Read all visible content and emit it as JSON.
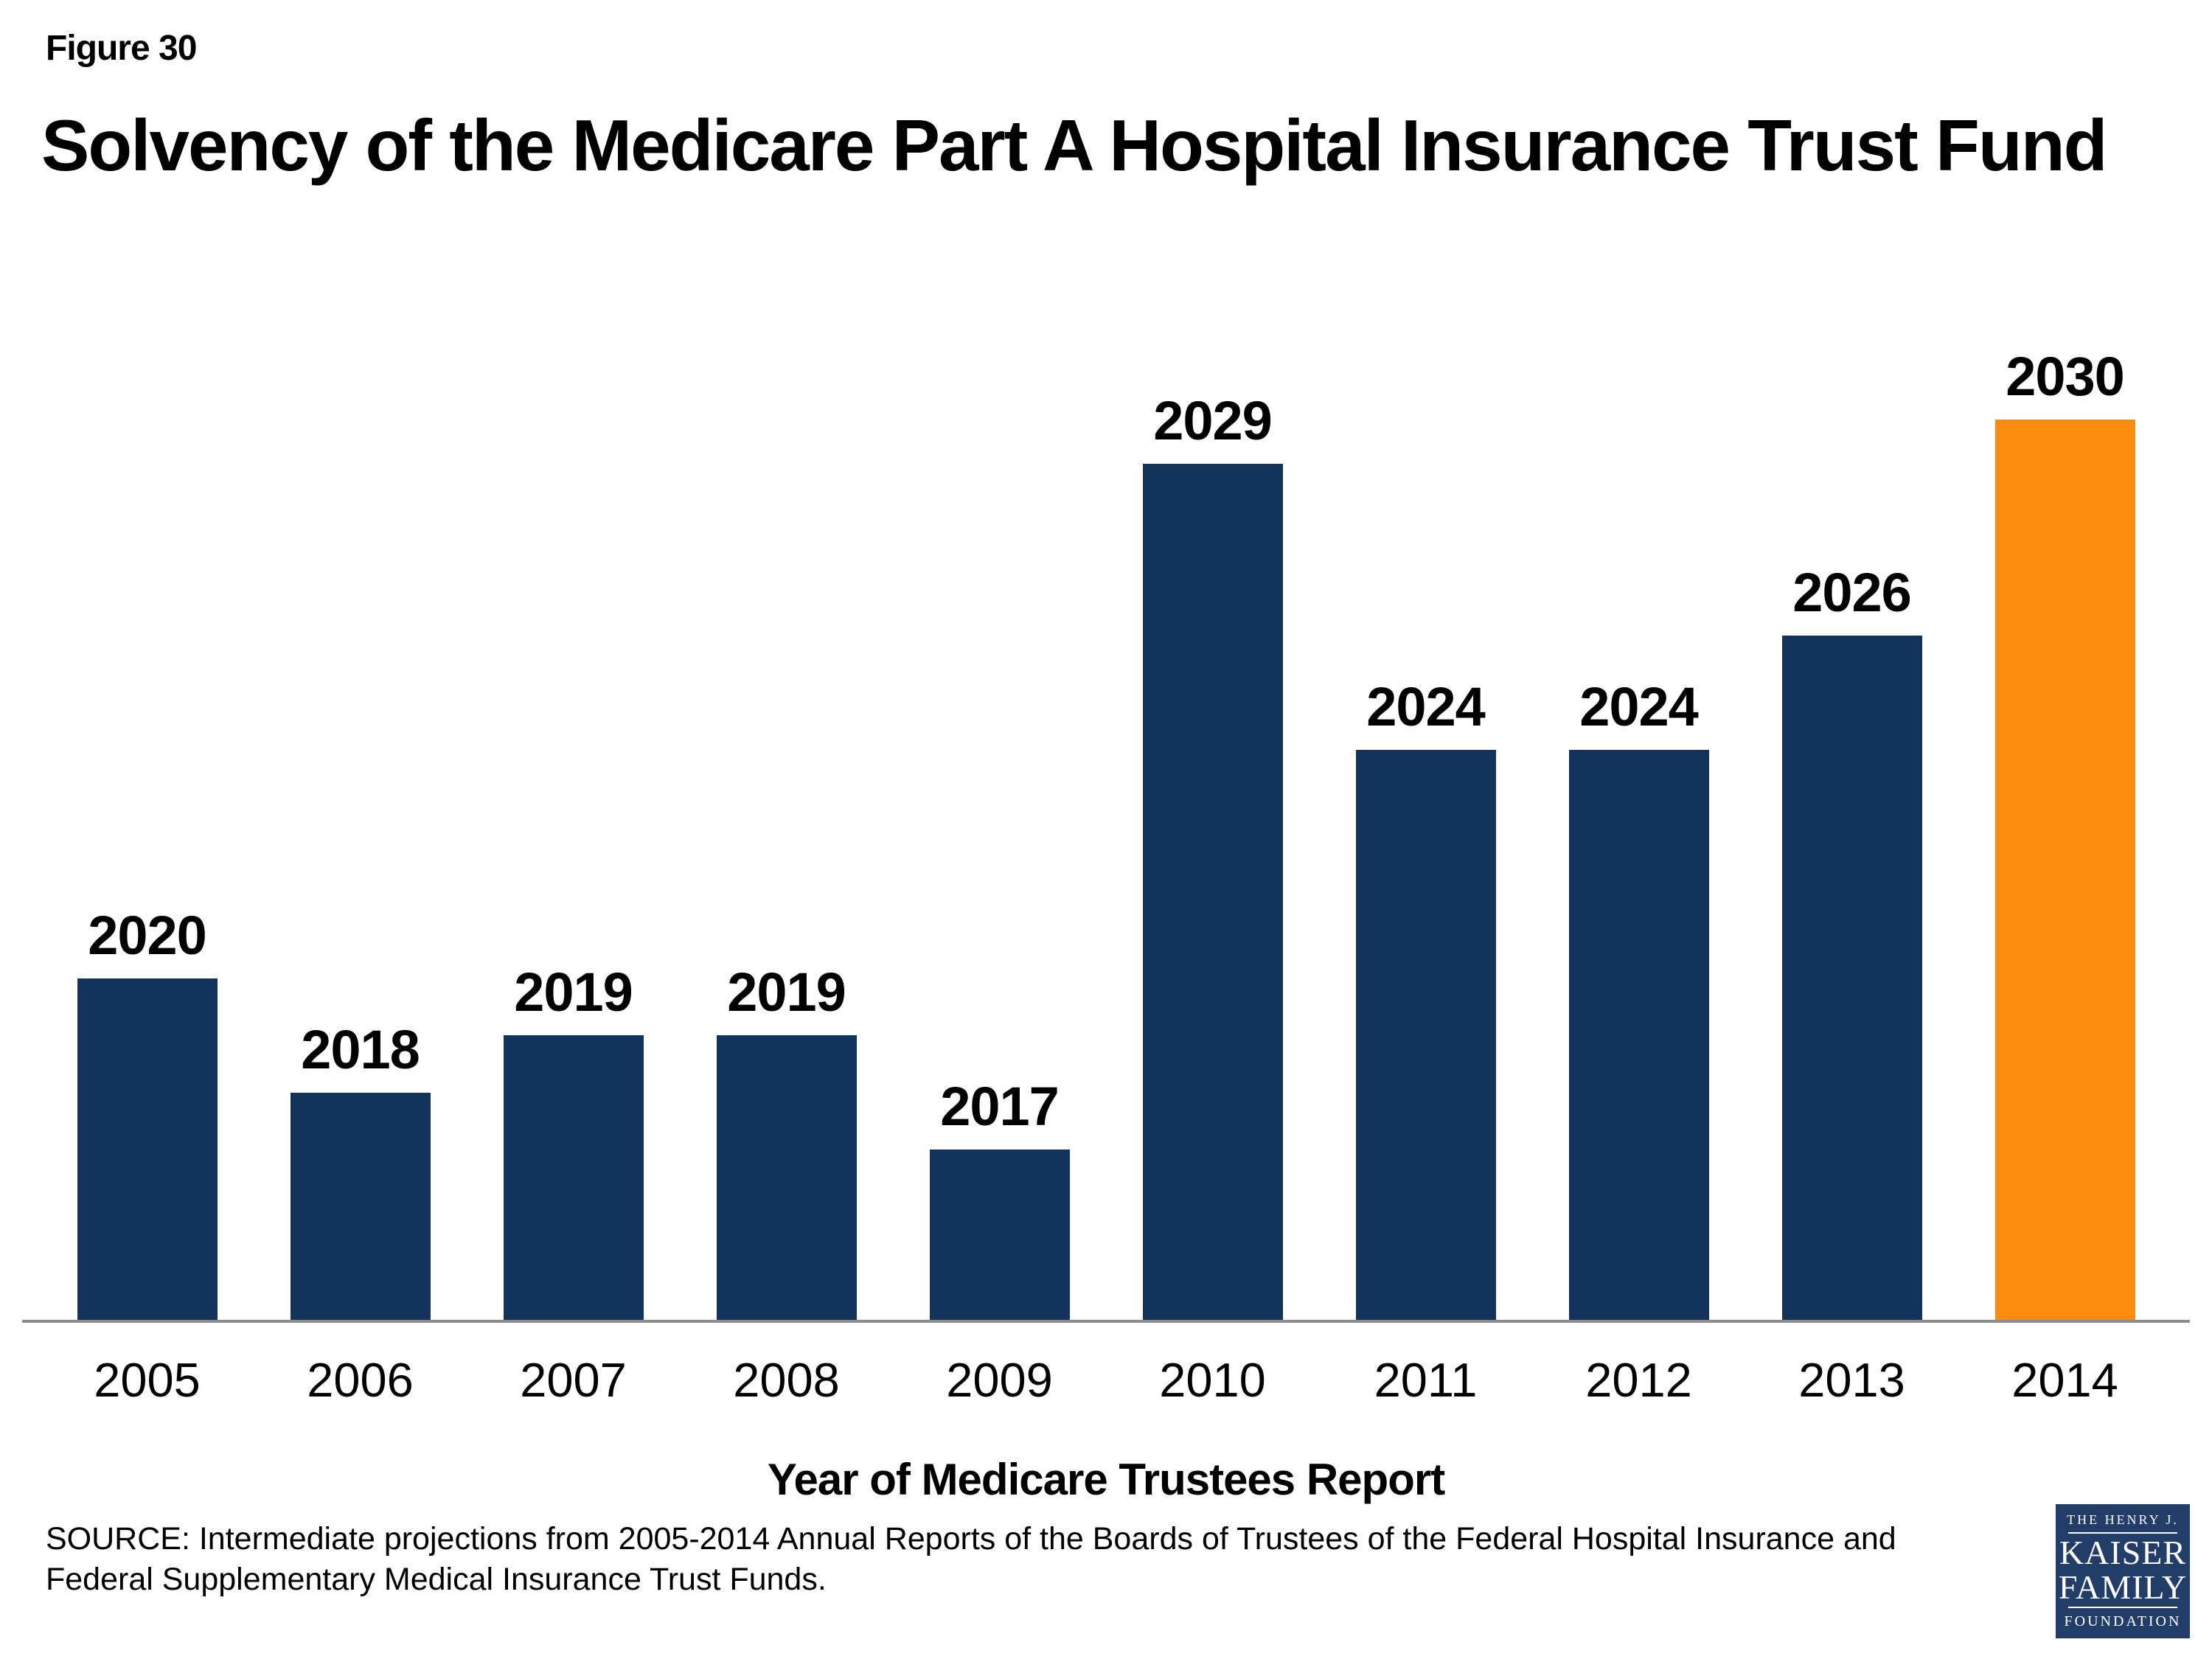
{
  "figure_label": "Figure 30",
  "title": "Solvency of the Medicare Part A Hospital Insurance Trust Fund",
  "source_lines": [
    "SOURCE: Intermediate projections from 2005-2014 Annual Reports of the Boards of Trustees of the Federal Hospital Insurance and",
    "Federal Supplementary Medical Insurance Trust Funds."
  ],
  "logo": {
    "line1": "THE HENRY J.",
    "line2": "KAISER",
    "line3": "FAMILY",
    "line4": "FOUNDATION"
  },
  "colors": {
    "bar": "#14335A",
    "highlight": "#FB8C0E",
    "axis": "#8C8C8C",
    "logoBg": "#223D68"
  },
  "chart_data": {
    "type": "bar",
    "title": "Solvency of the Medicare Part A Hospital Insurance Trust Fund",
    "xlabel": "Year of Medicare Trustees Report",
    "ylabel": "",
    "categories": [
      "2005",
      "2006",
      "2007",
      "2008",
      "2009",
      "2010",
      "2011",
      "2012",
      "2013",
      "2014"
    ],
    "values": [
      2020,
      2018,
      2019,
      2019,
      2017,
      2029,
      2024,
      2024,
      2026,
      2030
    ],
    "data_labels": [
      "2020",
      "2018",
      "2019",
      "2019",
      "2017",
      "2029",
      "2024",
      "2024",
      "2026",
      "2030"
    ],
    "highlight_index": 9,
    "ylim": [
      2014,
      2031
    ],
    "grid": false,
    "legend": "none"
  }
}
